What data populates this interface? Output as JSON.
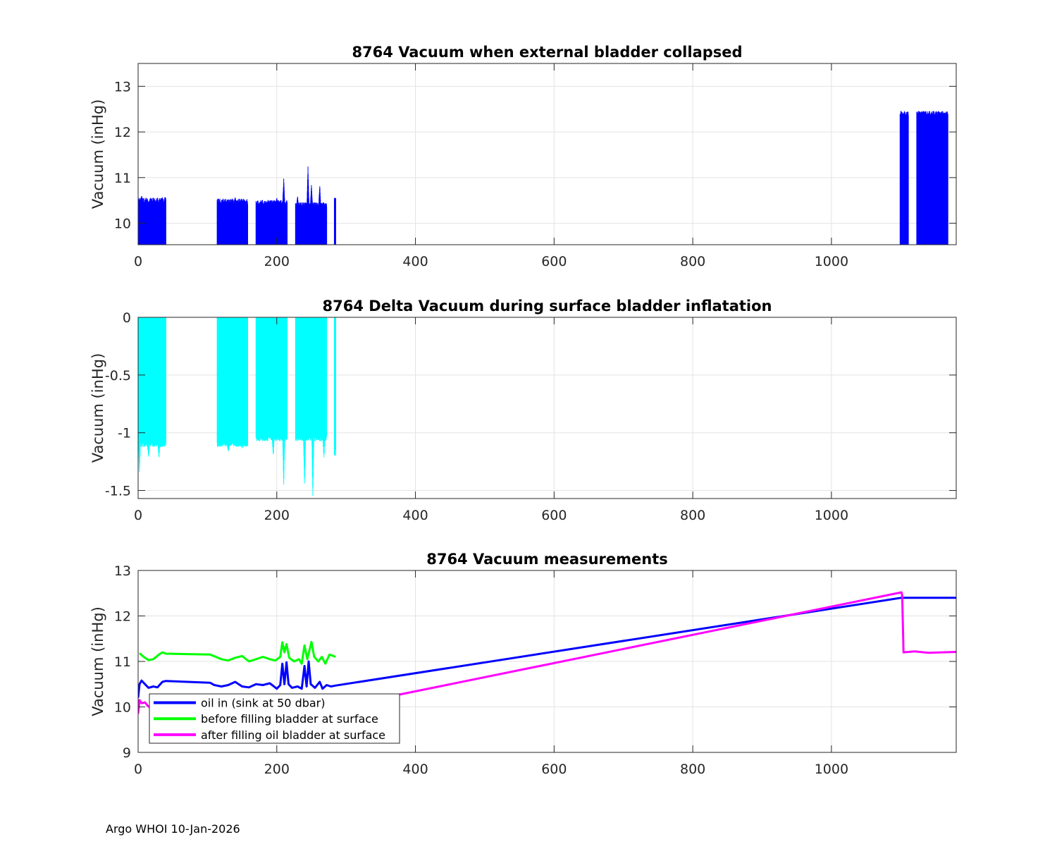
{
  "chart_data": [
    {
      "type": "bar",
      "title": "8764 Vacuum when external bladder collapsed",
      "xlabel": "",
      "ylabel": "Vacuum (inHg)",
      "xlim": [
        0,
        1180
      ],
      "ylim": [
        9.53,
        13.5
      ],
      "xticks": [
        0,
        200,
        400,
        600,
        800,
        1000
      ],
      "xtick_labels": [
        "0",
        "200",
        "400",
        "600",
        "800",
        "1000"
      ],
      "yticks": [
        10,
        11,
        12,
        13
      ],
      "ytick_labels": [
        "10",
        "11",
        "12",
        "13"
      ],
      "grid": true,
      "color": "#0000FF",
      "series": [
        {
          "values": [
            [
              0,
              40,
              10.5,
              [
                [
                  5,
                  10.58
                ],
                [
                  15,
                  10.43
                ],
                [
                  25,
                  10.47
                ],
                [
                  35,
                  10.55
                ],
                [
                  39,
                  10.57
                ]
              ]
            ],
            [
              114,
              158,
              10.48,
              [
                [
                  140,
                  10.55
                ],
                [
                  155,
                  10.45
                ]
              ]
            ],
            [
              170,
              215,
              10.45,
              [
                [
                  200,
                  10.55
                ],
                [
                  210,
                  10.97
                ]
              ]
            ],
            [
              227,
              272,
              10.4,
              [
                [
                  230,
                  10.58
                ],
                [
                  245,
                  11.22
                ],
                [
                  250,
                  10.85
                ],
                [
                  262,
                  10.82
                ]
              ]
            ],
            [
              283,
              285,
              10.5,
              []
            ],
            [
              1099,
              1111,
              12.4,
              []
            ],
            [
              1123,
              1168,
              12.4,
              []
            ]
          ]
        }
      ]
    },
    {
      "type": "bar",
      "title": "8764 Delta Vacuum during surface bladder inflatation",
      "xlabel": "",
      "ylabel": "Vacuum (inHg)",
      "xlim": [
        0,
        1180
      ],
      "ylim": [
        -1.57,
        0
      ],
      "xticks": [
        0,
        200,
        400,
        600,
        800,
        1000
      ],
      "xtick_labels": [
        "0",
        "200",
        "400",
        "600",
        "800",
        "1000"
      ],
      "yticks": [
        -1.5,
        -1,
        -0.5,
        0
      ],
      "ytick_labels": [
        "-1.5",
        "-1",
        "-0.5",
        "0"
      ],
      "grid": true,
      "color": "#00FFFF",
      "series": [
        {
          "values": [
            [
              0,
              40,
              -1.1,
              [
                [
                  2,
                  -1.32
                ],
                [
                  15,
                  -1.2
                ],
                [
                  30,
                  -1.22
                ]
              ]
            ],
            [
              114,
              158,
              -1.1,
              [
                [
                  130,
                  -1.15
                ],
                [
                  150,
                  -1.12
                ]
              ]
            ],
            [
              170,
              215,
              -1.05,
              [
                [
                  195,
                  -1.2
                ],
                [
                  210,
                  -1.45
                ]
              ]
            ],
            [
              227,
              272,
              -1.05,
              [
                [
                  240,
                  -1.45
                ],
                [
                  252,
                  -1.55
                ],
                [
                  268,
                  -1.2
                ]
              ]
            ],
            [
              283,
              285,
              -1.15,
              [
                [
                  284,
                  -1.2
                ]
              ]
            ]
          ]
        }
      ]
    },
    {
      "type": "line",
      "title": "8764 Vacuum measurements",
      "xlabel": "",
      "ylabel": "Vacuum (inHg)",
      "xlim": [
        0,
        1180
      ],
      "ylim": [
        9,
        13
      ],
      "xticks": [
        0,
        200,
        400,
        600,
        800,
        1000
      ],
      "xtick_labels": [
        "0",
        "200",
        "400",
        "600",
        "800",
        "1000"
      ],
      "yticks": [
        9,
        10,
        11,
        12,
        13
      ],
      "ytick_labels": [
        "9",
        "10",
        "11",
        "12",
        "13"
      ],
      "grid": true,
      "legend_position": "bottom-left",
      "series": [
        {
          "name": "oil in (sink at 50 dbar)",
          "color": "#0000FF",
          "points": [
            [
              0,
              10.2
            ],
            [
              2,
              10.5
            ],
            [
              5,
              10.58
            ],
            [
              10,
              10.5
            ],
            [
              15,
              10.42
            ],
            [
              22,
              10.45
            ],
            [
              28,
              10.43
            ],
            [
              35,
              10.55
            ],
            [
              40,
              10.57
            ],
            [
              104,
              10.53
            ],
            [
              110,
              10.48
            ],
            [
              120,
              10.45
            ],
            [
              130,
              10.48
            ],
            [
              140,
              10.55
            ],
            [
              150,
              10.45
            ],
            [
              160,
              10.43
            ],
            [
              170,
              10.5
            ],
            [
              180,
              10.48
            ],
            [
              190,
              10.52
            ],
            [
              196,
              10.45
            ],
            [
              200,
              10.4
            ],
            [
              205,
              10.48
            ],
            [
              208,
              10.95
            ],
            [
              211,
              10.5
            ],
            [
              214,
              10.98
            ],
            [
              217,
              10.5
            ],
            [
              222,
              10.42
            ],
            [
              230,
              10.45
            ],
            [
              236,
              10.4
            ],
            [
              240,
              10.9
            ],
            [
              243,
              10.45
            ],
            [
              246,
              11.0
            ],
            [
              249,
              10.5
            ],
            [
              255,
              10.42
            ],
            [
              262,
              10.55
            ],
            [
              266,
              10.4
            ],
            [
              272,
              10.48
            ],
            [
              278,
              10.45
            ],
            [
              285,
              10.47
            ],
            [
              1101,
              12.4
            ],
            [
              1180,
              12.4
            ]
          ]
        },
        {
          "name": "before filling bladder at surface",
          "color": "#00FF00",
          "points": [
            [
              2,
              11.18
            ],
            [
              8,
              11.1
            ],
            [
              15,
              11.03
            ],
            [
              22,
              11.05
            ],
            [
              30,
              11.15
            ],
            [
              35,
              11.2
            ],
            [
              40,
              11.17
            ],
            [
              104,
              11.15
            ],
            [
              112,
              11.1
            ],
            [
              120,
              11.05
            ],
            [
              130,
              11.02
            ],
            [
              140,
              11.08
            ],
            [
              150,
              11.12
            ],
            [
              160,
              11.0
            ],
            [
              170,
              11.05
            ],
            [
              180,
              11.1
            ],
            [
              190,
              11.05
            ],
            [
              198,
              11.02
            ],
            [
              205,
              11.1
            ],
            [
              208,
              11.42
            ],
            [
              211,
              11.2
            ],
            [
              214,
              11.38
            ],
            [
              218,
              11.08
            ],
            [
              225,
              11.0
            ],
            [
              232,
              11.05
            ],
            [
              236,
              10.95
            ],
            [
              240,
              11.35
            ],
            [
              244,
              11.05
            ],
            [
              250,
              11.43
            ],
            [
              254,
              11.1
            ],
            [
              260,
              11.0
            ],
            [
              265,
              11.1
            ],
            [
              270,
              10.95
            ],
            [
              276,
              11.15
            ],
            [
              285,
              11.1
            ]
          ]
        },
        {
          "name": "after filling oil bladder at surface",
          "color": "#FF00FF",
          "points": [
            [
              0,
              9.85
            ],
            [
              2,
              10.15
            ],
            [
              5,
              10.08
            ],
            [
              10,
              10.1
            ],
            [
              14,
              10.02
            ],
            [
              18,
              9.98
            ],
            [
              25,
              9.97
            ],
            [
              370,
              10.25
            ],
            [
              1101,
              12.52
            ],
            [
              1102,
              12.45
            ],
            [
              1104,
              11.2
            ],
            [
              1120,
              11.22
            ],
            [
              1140,
              11.19
            ],
            [
              1160,
              11.2
            ],
            [
              1180,
              11.21
            ]
          ]
        }
      ]
    }
  ],
  "footer": "Argo WHOI 10-Jan-2026"
}
